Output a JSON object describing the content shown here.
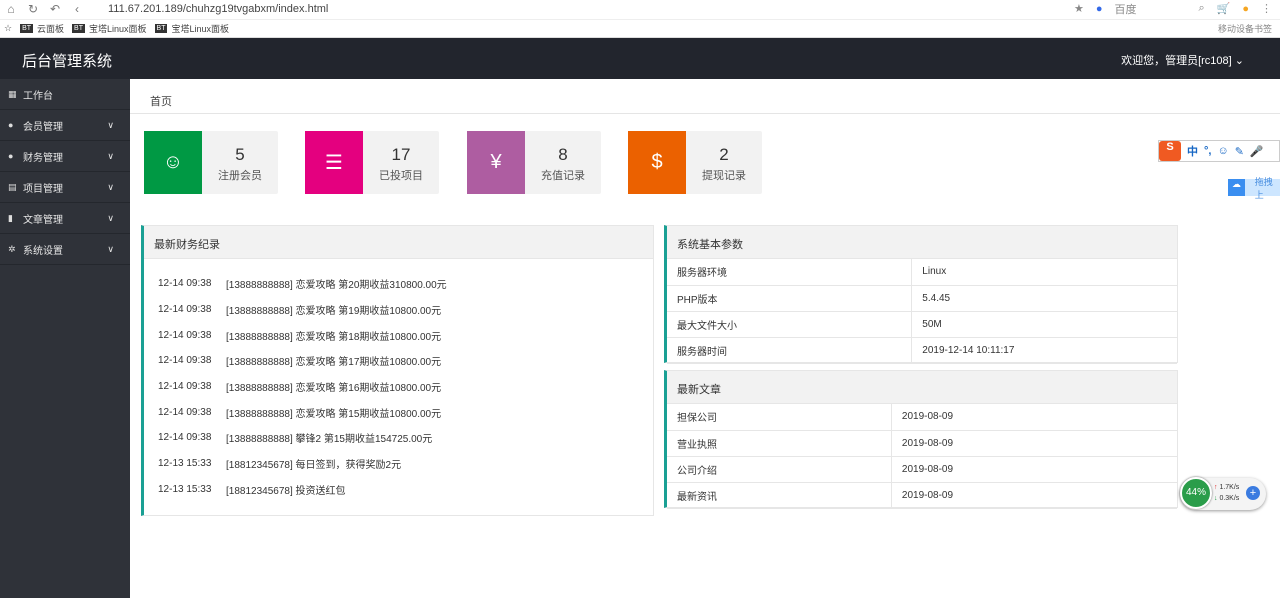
{
  "browser": {
    "url": "111.67.201.189/chuhzg19tvgabxm/index.html",
    "search_engine": "百度",
    "bookmarks": [
      "云面板",
      "宝塔Linux面板",
      "宝塔Linux面板"
    ],
    "mobile_bookmarks": "移动设备书签"
  },
  "header": {
    "title": "后台管理系统",
    "user": "欢迎您，管理员[rc108]"
  },
  "sidebar": {
    "items": [
      {
        "label": "工作台",
        "icon": "dashboard-icon"
      },
      {
        "label": "会员管理",
        "icon": "user-icon"
      },
      {
        "label": "财务管理",
        "icon": "money-icon"
      },
      {
        "label": "项目管理",
        "icon": "list-icon"
      },
      {
        "label": "文章管理",
        "icon": "file-icon"
      },
      {
        "label": "系统设置",
        "icon": "gear-icon"
      }
    ]
  },
  "breadcrumb": "首页",
  "stats": [
    {
      "value": "5",
      "label": "注册会员",
      "color": "#009944"
    },
    {
      "value": "17",
      "label": "已投项目",
      "color": "#e4007f"
    },
    {
      "value": "8",
      "label": "充值记录",
      "color": "#ae5da1"
    },
    {
      "value": "2",
      "label": "提现记录",
      "color": "#eb6100"
    }
  ],
  "finance": {
    "title": "最新财务纪录",
    "rows": [
      {
        "time": "12-14 09:38",
        "text": "[13888888888] 恋爱攻略 第20期收益310800.00元"
      },
      {
        "time": "12-14 09:38",
        "text": "[13888888888] 恋爱攻略 第19期收益10800.00元"
      },
      {
        "time": "12-14 09:38",
        "text": "[13888888888] 恋爱攻略 第18期收益10800.00元"
      },
      {
        "time": "12-14 09:38",
        "text": "[13888888888] 恋爱攻略 第17期收益10800.00元"
      },
      {
        "time": "12-14 09:38",
        "text": "[13888888888] 恋爱攻略 第16期收益10800.00元"
      },
      {
        "time": "12-14 09:38",
        "text": "[13888888888] 恋爱攻略 第15期收益10800.00元"
      },
      {
        "time": "12-14 09:38",
        "text": "[13888888888] 攀锋2 第15期收益154725.00元"
      },
      {
        "time": "12-13 15:33",
        "text": "[18812345678] 每日签到，获得奖励2元"
      },
      {
        "time": "12-13 15:33",
        "text": "[18812345678] 投资送红包"
      }
    ]
  },
  "system": {
    "title": "系统基本参数",
    "rows": [
      [
        "服务器环境",
        "Linux"
      ],
      [
        "PHP版本",
        "5.4.45"
      ],
      [
        "最大文件大小",
        "50M"
      ],
      [
        "服务器时间",
        "2019-12-14 10:11:17"
      ]
    ]
  },
  "articles": {
    "title": "最新文章",
    "rows": [
      [
        "担保公司",
        "2019-08-09"
      ],
      [
        "营业执照",
        "2019-08-09"
      ],
      [
        "公司介绍",
        "2019-08-09"
      ],
      [
        "最新资讯",
        "2019-08-09"
      ]
    ]
  },
  "widgets": {
    "ime_label": "中",
    "baidu_label": "拖拽上",
    "speed_percent": "44%",
    "upload": "1.7K/s",
    "download": "0.3K/s"
  }
}
